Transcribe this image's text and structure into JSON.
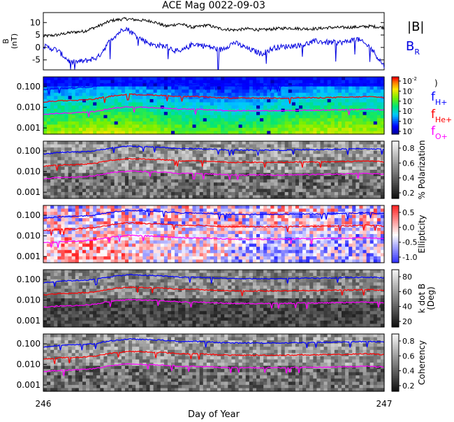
{
  "title": "ACE Mag 0022-09-03",
  "xlabel": "Day of Year",
  "colors": {
    "B": "#000000",
    "BR": "#0000e0",
    "fH": "#0000ff",
    "fHe": "#ff0000",
    "fO": "#ff00ff"
  },
  "legend": {
    "B": "|B|",
    "BR_main": "B",
    "BR_sub": "R",
    "fH_main": "f",
    "fH_sub": "H+",
    "fHe_main": "f",
    "fHe_sub": "He+",
    "fO_main": "f",
    "fO_sub": "O+"
  },
  "chart_data": {
    "type": "line",
    "xlim": [
      246,
      247
    ],
    "x_ticks": [
      "246",
      "247"
    ],
    "panels": [
      {
        "id": "field",
        "type": "line",
        "ylabel_line1": "B",
        "ylabel_line2": "(nT)",
        "ylim": [
          -9,
          14
        ],
        "y_ticks": [
          "10",
          "5",
          "0",
          "-5"
        ],
        "y_tick_values": [
          10,
          5,
          0,
          -5
        ],
        "series": [
          {
            "name": "|B|",
            "color": "#000000",
            "x": [
              246.0,
              246.04,
              246.08,
              246.12,
              246.16,
              246.2,
              246.24,
              246.28,
              246.32,
              246.36,
              246.4,
              246.44,
              246.48,
              246.52,
              246.56,
              246.6,
              246.64,
              246.68,
              246.72,
              246.76,
              246.8,
              246.84,
              246.88,
              246.92,
              246.96,
              247.0
            ],
            "y": [
              4.5,
              5.0,
              6.0,
              6.5,
              8.5,
              10.8,
              11.5,
              11.0,
              10.5,
              8.5,
              9.5,
              8.0,
              9.0,
              7.5,
              7.0,
              7.5,
              7.0,
              7.5,
              7.8,
              7.5,
              7.5,
              8.0,
              8.0,
              8.2,
              8.5,
              8.0
            ]
          },
          {
            "name": "B_R",
            "color": "#0000e0",
            "x": [
              246.0,
              246.04,
              246.08,
              246.12,
              246.16,
              246.2,
              246.24,
              246.28,
              246.32,
              246.36,
              246.4,
              246.44,
              246.48,
              246.52,
              246.56,
              246.6,
              246.64,
              246.68,
              246.72,
              246.76,
              246.8,
              246.84,
              246.88,
              246.92,
              246.96,
              247.0
            ],
            "y": [
              0.5,
              -1.0,
              -6.0,
              -5.5,
              -4.0,
              3.5,
              8.0,
              4.0,
              1.0,
              0.5,
              -2.0,
              1.5,
              0.5,
              -1.0,
              2.0,
              -0.5,
              -2.5,
              0.0,
              0.5,
              1.0,
              2.5,
              2.0,
              2.0,
              3.5,
              0.0,
              -7.5
            ]
          }
        ]
      },
      {
        "id": "power",
        "type": "heatmap",
        "ylabel_line1": "",
        "colorbar_label": "",
        "colorbar_type": "rainbow",
        "colorbar_ticks": [
          "10",
          "10",
          "10",
          "10",
          "10",
          "10"
        ],
        "colorbar_exponents": [
          "-2",
          "-",
          "-",
          "-",
          "-",
          "-"
        ]
      },
      {
        "id": "polarization",
        "type": "heatmap",
        "colorbar_label": "% Polarization",
        "colorbar_type": "gray",
        "colorbar_ticks": [
          "0.8",
          "0.6",
          "0.4",
          "0.2"
        ]
      },
      {
        "id": "ellipticity",
        "type": "heatmap",
        "colorbar_label": "Ellipticity",
        "colorbar_type": "bwr",
        "colorbar_ticks": [
          "0.5",
          "0.0",
          "-0.5",
          "-1.0"
        ]
      },
      {
        "id": "kdotb",
        "type": "heatmap",
        "colorbar_label_line1": "k dot B",
        "colorbar_label_line2": "(Deg)",
        "colorbar_type": "gray",
        "colorbar_ticks": [
          "80",
          "60",
          "40",
          "20"
        ]
      },
      {
        "id": "coherency",
        "type": "heatmap",
        "colorbar_label": "Coherency",
        "colorbar_type": "gray",
        "colorbar_ticks": [
          "0.8",
          "0.6",
          "0.4",
          "0.2"
        ]
      }
    ],
    "freq_axis": {
      "scale": "log",
      "ylim": [
        0.0005,
        0.3
      ],
      "y_ticks": [
        "0.100",
        "0.010",
        "0.001"
      ],
      "y_tick_values": [
        0.1,
        0.01,
        0.001
      ]
    },
    "gyro_lines": [
      {
        "name": "f_H+",
        "color": "#0000ff",
        "x": [
          246.0,
          246.05,
          246.1,
          246.15,
          246.2,
          246.25,
          246.3,
          246.35,
          246.4,
          246.45,
          246.5,
          246.55,
          246.6,
          246.65,
          246.7,
          246.75,
          246.8,
          246.85,
          246.9,
          246.95,
          247.0
        ],
        "y": [
          0.07,
          0.085,
          0.09,
          0.1,
          0.14,
          0.17,
          0.16,
          0.15,
          0.13,
          0.13,
          0.12,
          0.11,
          0.11,
          0.11,
          0.11,
          0.115,
          0.115,
          0.12,
          0.125,
          0.13,
          0.12
        ]
      },
      {
        "name": "f_He+",
        "color": "#ff0000",
        "x": [
          246.0,
          246.05,
          246.1,
          246.15,
          246.2,
          246.25,
          246.3,
          246.35,
          246.4,
          246.45,
          246.5,
          246.55,
          246.6,
          246.65,
          246.7,
          246.75,
          246.8,
          246.85,
          246.9,
          246.95,
          247.0
        ],
        "y": [
          0.018,
          0.021,
          0.022,
          0.025,
          0.035,
          0.043,
          0.04,
          0.038,
          0.033,
          0.033,
          0.03,
          0.028,
          0.028,
          0.028,
          0.028,
          0.029,
          0.029,
          0.03,
          0.031,
          0.033,
          0.03
        ]
      },
      {
        "name": "f_O+",
        "color": "#ff00ff",
        "x": [
          246.0,
          246.05,
          246.1,
          246.15,
          246.2,
          246.25,
          246.3,
          246.35,
          246.4,
          246.45,
          246.5,
          246.55,
          246.6,
          246.65,
          246.7,
          246.75,
          246.8,
          246.85,
          246.9,
          246.95,
          247.0
        ],
        "y": [
          0.0045,
          0.0052,
          0.0055,
          0.0063,
          0.0088,
          0.0106,
          0.01,
          0.0094,
          0.0081,
          0.0081,
          0.0075,
          0.0069,
          0.0069,
          0.0069,
          0.0069,
          0.0072,
          0.0072,
          0.0075,
          0.0078,
          0.0081,
          0.0075
        ]
      }
    ]
  }
}
